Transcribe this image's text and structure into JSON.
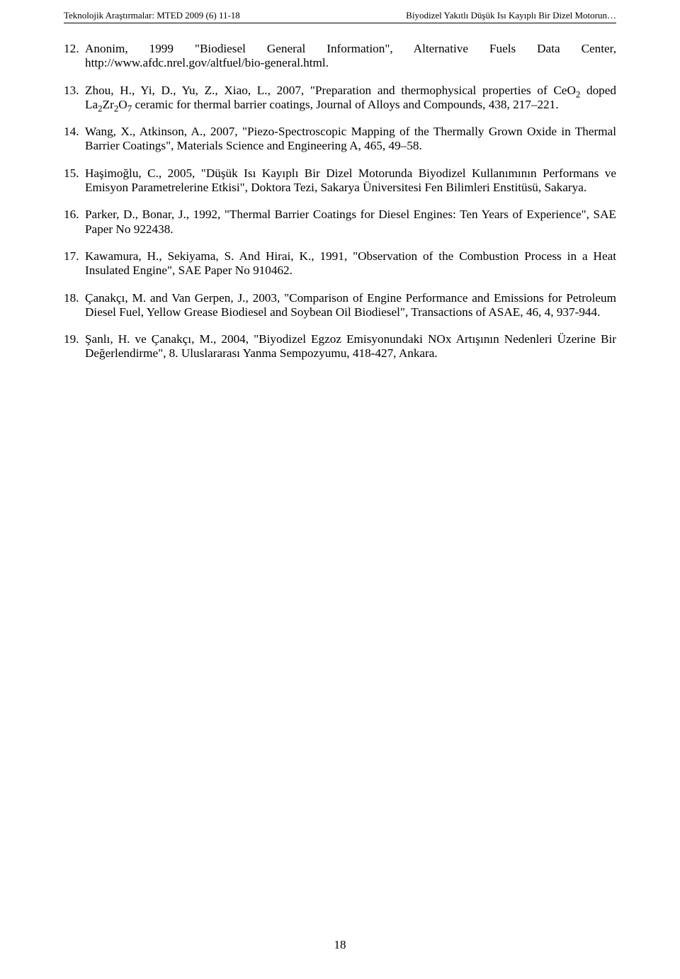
{
  "header_left": "Teknolojik Araştırmalar: MTED 2009 (6) 11-18",
  "header_right": "Biyodizel Yakıtlı Düşük Isı Kayıplı Bir Dizel Motorun…",
  "page_number": "18",
  "refs": [
    {
      "num": "12.",
      "segments": [
        {
          "text": "Anonim, 1999 \"Biodiesel General Information\", Alternative Fuels Data Center, ",
          "justify_wide": true
        },
        {
          "text": "http://www.afdc.nrel.gov/altfuel/bio-general.html."
        }
      ]
    },
    {
      "num": "13.",
      "segments": [
        {
          "text": "Zhou, H., Yi, D., Yu, Z., Xiao, L., 2007, \"Preparation and thermophysical properties of CeO"
        },
        {
          "sub": "2"
        },
        {
          "text": " doped La"
        },
        {
          "sub": "2"
        },
        {
          "text": "Zr"
        },
        {
          "sub": "2"
        },
        {
          "text": "O"
        },
        {
          "sub": "7"
        },
        {
          "text": " ceramic for thermal barrier coatings, Journal of Alloys and Compounds, 438, 217–221."
        }
      ]
    },
    {
      "num": "14.",
      "segments": [
        {
          "text": "Wang, X., Atkinson, A., 2007, \"Piezo-Spectroscopic Mapping of the Thermally Grown Oxide in Thermal Barrier Coatings\", Materials Science and Engineering A, 465, 49–58."
        }
      ]
    },
    {
      "num": "15.",
      "segments": [
        {
          "text": "Haşimoğlu, C., 2005, \"Düşük Isı Kayıplı Bir Dizel Motorunda Biyodizel Kullanımının Performans ve Emisyon Parametrelerine Etkisi\", Doktora Tezi, Sakarya Üniversitesi Fen Bilimleri Enstitüsü, Sakarya."
        }
      ]
    },
    {
      "num": "16.",
      "segments": [
        {
          "text": "Parker, D., Bonar, J., 1992, \"Thermal Barrier Coatings for Diesel Engines: Ten Years of Experience\", SAE Paper No 922438."
        }
      ]
    },
    {
      "num": "17.",
      "segments": [
        {
          "text": "Kawamura, H., Sekiyama, S. And Hirai, K., 1991, \"Observation of the Combustion Process in a Heat Insulated Engine\", SAE Paper No 910462."
        }
      ]
    },
    {
      "num": "18.",
      "segments": [
        {
          "text": "Çanakçı, M. and Van Gerpen, J., 2003, \"Comparison of Engine Performance and Emissions for Petroleum Diesel Fuel, Yellow Grease Biodiesel and Soybean Oil Biodiesel\", Transactions of ASAE, 46, 4, 937-944."
        }
      ]
    },
    {
      "num": "19.",
      "segments": [
        {
          "text": "Şanlı, H. ve Çanakçı, M., 2004, \"Biyodizel Egzoz Emisyonundaki NOx Artışının Nedenleri Üzerine Bir Değerlendirme\", 8. Uluslararası Yanma Sempozyumu, 418-427, Ankara."
        }
      ]
    }
  ]
}
